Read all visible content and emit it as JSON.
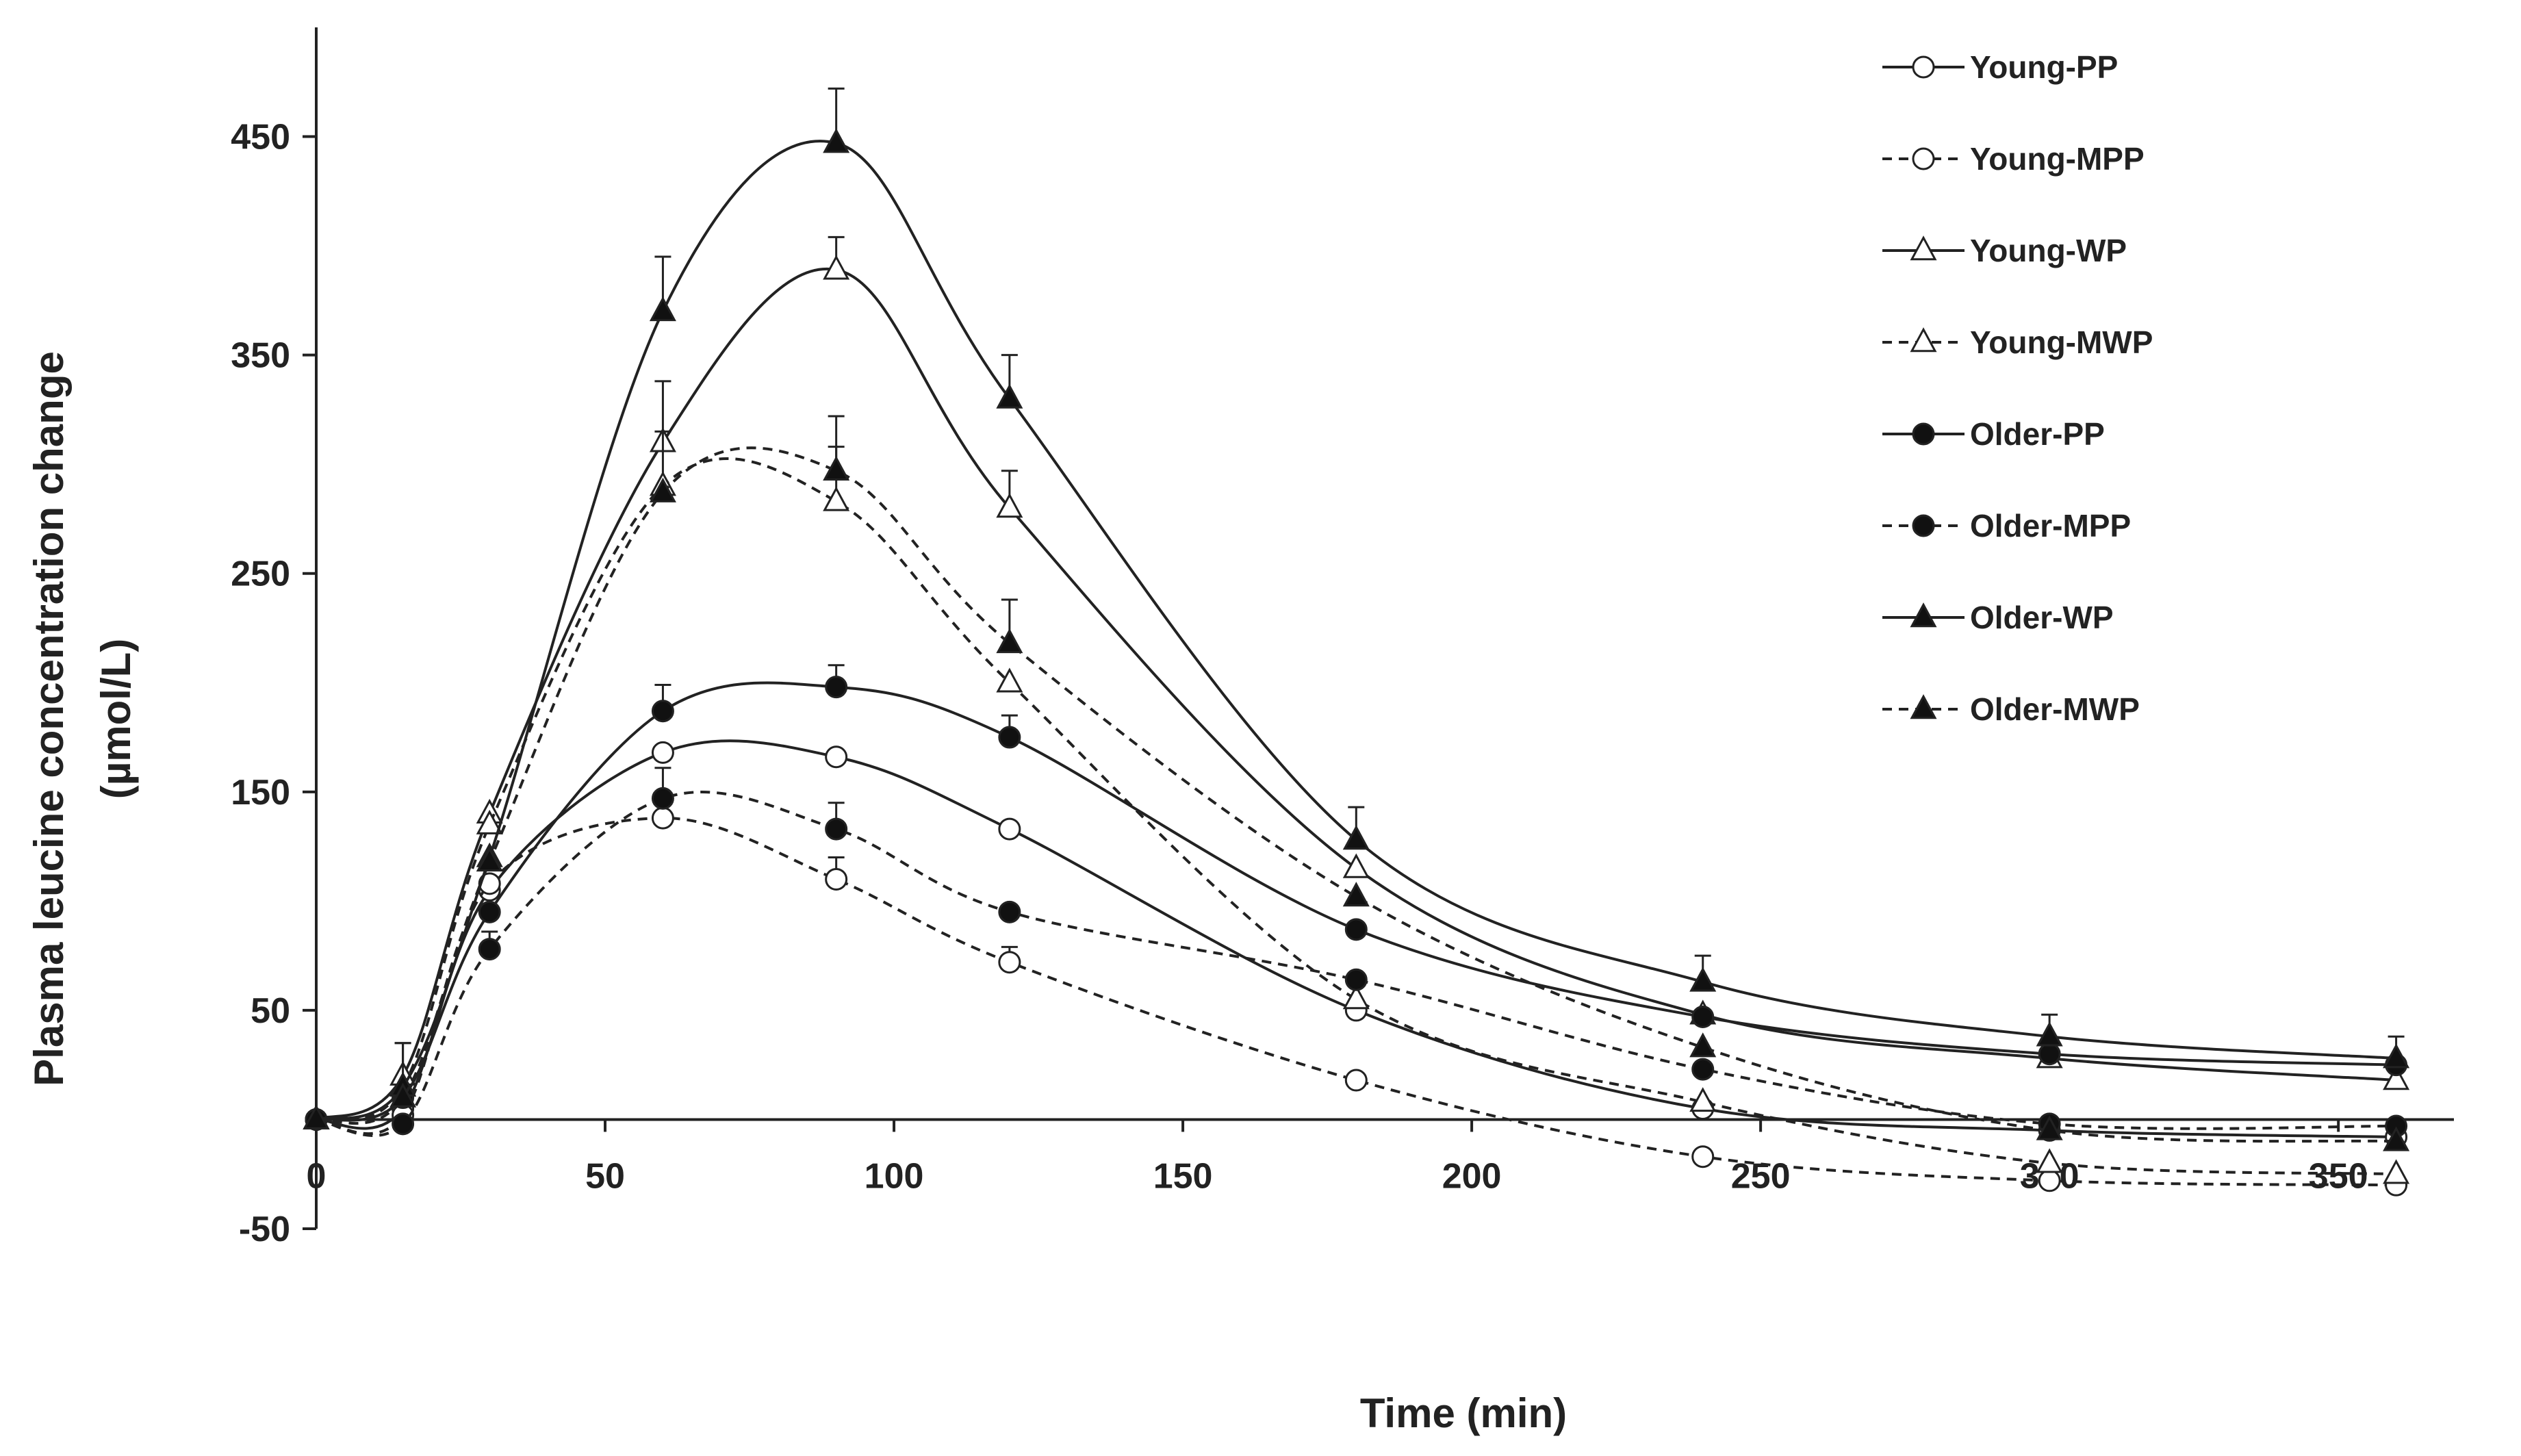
{
  "chart_data": {
    "type": "line",
    "title": "",
    "xlabel": "Time (min)",
    "ylabel_line1": "Plasma leucine concentration change",
    "ylabel_line2": "(µmol/L)",
    "xlim": [
      0,
      370
    ],
    "ylim": [
      -50,
      500
    ],
    "x_ticks": [
      0,
      50,
      100,
      150,
      200,
      250,
      300,
      350
    ],
    "y_ticks": [
      -50,
      50,
      150,
      250,
      350,
      450
    ],
    "x_tick_labels": [
      "0",
      "50",
      "100",
      "150",
      "200",
      "250",
      "300",
      "350"
    ],
    "y_tick_labels": [
      "-50",
      "50",
      "150",
      "250",
      "350",
      "450"
    ],
    "x": [
      0,
      15,
      30,
      60,
      90,
      120,
      180,
      240,
      300,
      360
    ],
    "series": [
      {
        "name": "Young-PP",
        "marker": "circle",
        "fill": "open",
        "dash": "solid",
        "values": [
          0,
          5,
          105,
          168,
          166,
          133,
          50,
          5,
          -5,
          -8
        ],
        "errors": [
          0,
          0,
          0,
          0,
          0,
          0,
          0,
          0,
          0,
          0
        ]
      },
      {
        "name": "Young-MPP",
        "marker": "circle",
        "fill": "open",
        "dash": "dashed",
        "values": [
          0,
          2,
          108,
          138,
          110,
          72,
          18,
          -17,
          -28,
          -30
        ],
        "errors": [
          0,
          0,
          0,
          0,
          10,
          7,
          0,
          0,
          0,
          0
        ]
      },
      {
        "name": "Young-WP",
        "marker": "triangle",
        "fill": "open",
        "dash": "solid",
        "values": [
          0,
          20,
          140,
          310,
          389,
          280,
          115,
          48,
          28,
          18
        ],
        "errors": [
          0,
          15,
          0,
          28,
          15,
          17,
          0,
          0,
          0,
          0
        ]
      },
      {
        "name": "Young-MWP",
        "marker": "triangle",
        "fill": "open",
        "dash": "dashed",
        "values": [
          0,
          15,
          135,
          290,
          283,
          200,
          55,
          8,
          -20,
          -25
        ],
        "errors": [
          0,
          0,
          0,
          25,
          25,
          0,
          0,
          0,
          0,
          0
        ]
      },
      {
        "name": "Older-PP",
        "marker": "circle",
        "fill": "filled",
        "dash": "solid",
        "values": [
          0,
          10,
          95,
          187,
          198,
          175,
          87,
          47,
          30,
          25
        ],
        "errors": [
          0,
          0,
          0,
          12,
          10,
          10,
          0,
          0,
          0,
          0
        ]
      },
      {
        "name": "Older-MPP",
        "marker": "circle",
        "fill": "filled",
        "dash": "dashed",
        "values": [
          0,
          -2,
          78,
          147,
          133,
          95,
          64,
          23,
          -2,
          -3
        ],
        "errors": [
          0,
          0,
          8,
          14,
          12,
          0,
          0,
          0,
          0,
          0
        ]
      },
      {
        "name": "Older-WP",
        "marker": "triangle",
        "fill": "filled",
        "dash": "solid",
        "values": [
          0,
          15,
          120,
          370,
          447,
          330,
          128,
          63,
          38,
          28
        ],
        "errors": [
          0,
          20,
          0,
          25,
          25,
          20,
          15,
          12,
          10,
          10
        ]
      },
      {
        "name": "Older-MWP",
        "marker": "triangle",
        "fill": "filled",
        "dash": "dashed",
        "values": [
          0,
          10,
          118,
          287,
          297,
          218,
          102,
          33,
          -5,
          -10
        ],
        "errors": [
          0,
          0,
          0,
          0,
          25,
          20,
          0,
          0,
          0,
          0
        ]
      }
    ],
    "legend_position": "top-right",
    "grid": false
  }
}
